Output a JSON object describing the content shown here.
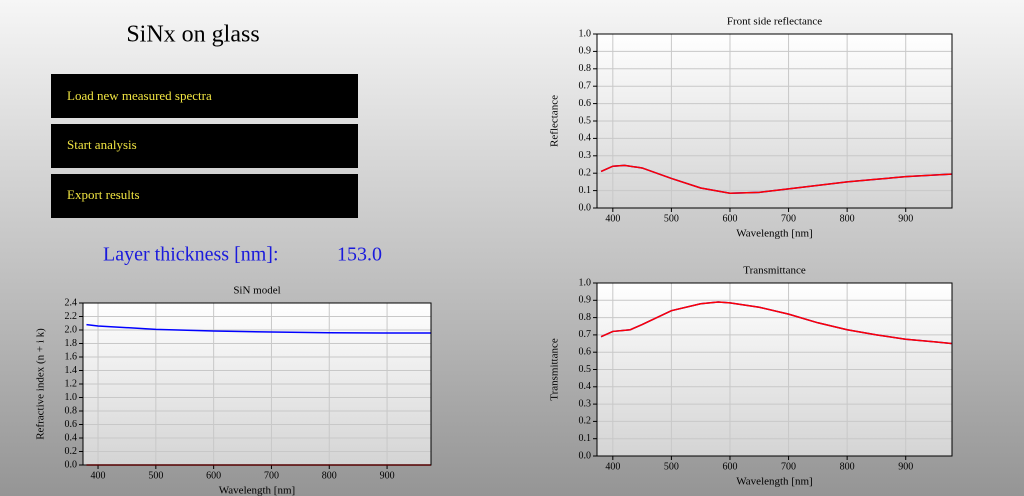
{
  "header": {
    "title": "SiNx on glass"
  },
  "buttons": [
    "Load new measured spectra",
    "Start analysis",
    "Export results"
  ],
  "thickness": {
    "label": "Layer thickness [nm]:",
    "value": "153.0"
  },
  "chart_data": [
    {
      "type": "line",
      "title": "Front side reflectance",
      "x_label": "Wavelength [nm]",
      "y_label": "Reflectance",
      "x": [
        380,
        400,
        420,
        450,
        500,
        550,
        600,
        650,
        700,
        750,
        800,
        850,
        900,
        950,
        978
      ],
      "series": [
        {
          "color": "#0000ff",
          "values": [
            0.21,
            0.24,
            0.245,
            0.23,
            0.17,
            0.115,
            0.085,
            0.09,
            0.11,
            0.13,
            0.15,
            0.165,
            0.18,
            0.19,
            0.195
          ]
        },
        {
          "color": "#ff0000",
          "values": [
            0.21,
            0.24,
            0.245,
            0.23,
            0.17,
            0.115,
            0.085,
            0.09,
            0.11,
            0.13,
            0.15,
            0.165,
            0.18,
            0.19,
            0.195
          ]
        }
      ],
      "xlim": [
        373,
        979
      ],
      "ylim": [
        0,
        1
      ],
      "xticks": [
        400,
        500,
        600,
        700,
        800,
        900
      ],
      "yticks": [
        {
          "value": 0,
          "label": "0.0"
        },
        0.1,
        0.2,
        0.3,
        0.4,
        0.5,
        0.6,
        0.7,
        0.8,
        0.9,
        {
          "value": 1,
          "label": "1.0"
        }
      ],
      "grid": true
    },
    {
      "type": "line",
      "title": "Transmittance",
      "x_label": "Wavelength [nm]",
      "y_label": "Transmittance",
      "x": [
        380,
        400,
        430,
        450,
        500,
        550,
        580,
        600,
        650,
        700,
        750,
        800,
        850,
        900,
        950,
        978
      ],
      "series": [
        {
          "color": "#0000ff",
          "values": [
            0.69,
            0.72,
            0.73,
            0.76,
            0.84,
            0.88,
            0.89,
            0.885,
            0.86,
            0.82,
            0.77,
            0.73,
            0.7,
            0.675,
            0.66,
            0.65
          ]
        },
        {
          "color": "#ff0000",
          "values": [
            0.69,
            0.72,
            0.73,
            0.76,
            0.84,
            0.88,
            0.89,
            0.885,
            0.86,
            0.82,
            0.77,
            0.73,
            0.7,
            0.675,
            0.66,
            0.65
          ]
        }
      ],
      "xlim": [
        373,
        979
      ],
      "ylim": [
        0,
        1
      ],
      "xticks": [
        400,
        500,
        600,
        700,
        800,
        900
      ],
      "yticks": [
        {
          "value": 0,
          "label": "0.0"
        },
        0.1,
        0.2,
        0.3,
        0.4,
        0.5,
        0.6,
        0.7,
        0.8,
        0.9,
        {
          "value": 1,
          "label": "1.0"
        }
      ],
      "grid": true
    },
    {
      "type": "line",
      "title": "SiN model",
      "x_label": "Wavelength [nm]",
      "y_label": "Refractive index (n + i k)",
      "x": [
        380,
        400,
        500,
        600,
        700,
        800,
        900,
        976
      ],
      "series": [
        {
          "color": "#0000ff",
          "values": [
            2.08,
            2.06,
            2.01,
            1.985,
            1.97,
            1.96,
            1.955,
            1.955
          ]
        },
        {
          "color": "#ff0000",
          "values": [
            0,
            0,
            0,
            0,
            0,
            0,
            0,
            0
          ]
        }
      ],
      "xlim": [
        374,
        976
      ],
      "ylim": [
        0,
        2.4
      ],
      "xticks": [
        400,
        500,
        600,
        700,
        800,
        900
      ],
      "yticks": [
        {
          "value": 0,
          "label": "0.0"
        },
        0.2,
        0.4,
        0.6,
        0.8,
        {
          "value": 1,
          "label": "1.0"
        },
        1.2,
        1.4,
        1.6,
        1.8,
        {
          "value": 2,
          "label": "2.0"
        },
        2.2,
        2.4
      ],
      "grid": true
    }
  ]
}
